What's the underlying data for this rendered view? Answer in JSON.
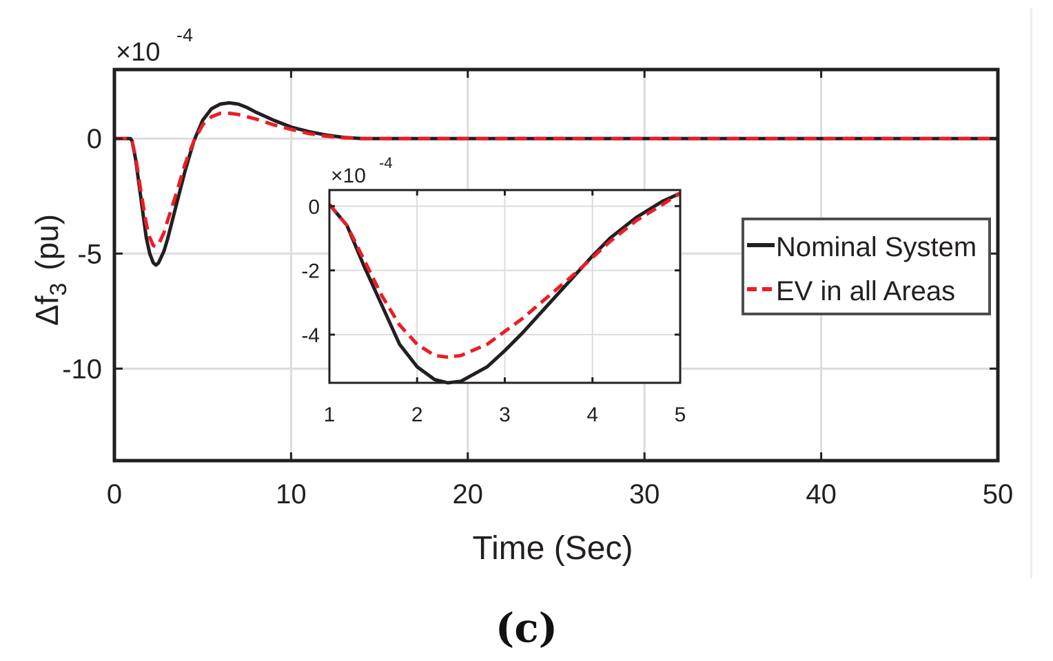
{
  "panel_label": "(c)",
  "chart_data": [
    {
      "id": "main",
      "type": "line",
      "title": "",
      "xlabel": "Time (Sec)",
      "ylabel_main": "Δf",
      "ylabel_sub": "3",
      "ylabel_unit": "(pu)",
      "y_scale_note": {
        "base": "×10",
        "exponent": "-4"
      },
      "xlim": [
        0,
        50
      ],
      "ylim": [
        -14,
        3
      ],
      "xticks": [
        0,
        10,
        20,
        30,
        40,
        50
      ],
      "xtick_labels": [
        "0",
        "10",
        "20",
        "30",
        "40",
        "50"
      ],
      "yticks": [
        0,
        -5,
        -10
      ],
      "ytick_labels": [
        "0",
        "-5",
        "-10"
      ],
      "grid": true,
      "legend": {
        "position": "center-right",
        "entries": [
          "Nominal System",
          "EV in all Areas"
        ]
      },
      "series": [
        {
          "name": "Nominal System",
          "color": "#231f20",
          "style": "solid",
          "x": [
            0,
            0.5,
            0.9,
            1.0,
            1.2,
            1.5,
            1.8,
            2.0,
            2.2,
            2.35,
            2.5,
            2.8,
            3.0,
            3.5,
            4.0,
            4.5,
            5.0,
            5.5,
            6.0,
            6.5,
            7.0,
            7.5,
            8.0,
            9.0,
            10.0,
            11.0,
            12.0,
            13.0,
            14.0,
            15.0,
            17.0,
            20.0,
            30.0,
            40.0,
            50.0
          ],
          "y": [
            0,
            0,
            0,
            -0.1,
            -0.9,
            -2.6,
            -4.3,
            -5.0,
            -5.4,
            -5.5,
            -5.4,
            -4.9,
            -4.4,
            -2.9,
            -1.4,
            -0.1,
            0.8,
            1.3,
            1.5,
            1.55,
            1.5,
            1.35,
            1.15,
            0.8,
            0.5,
            0.3,
            0.15,
            0.05,
            0.0,
            0.0,
            0.0,
            0.0,
            0.0,
            0.0,
            0.0
          ]
        },
        {
          "name": "EV in all Areas",
          "color": "#ed1c24",
          "style": "dashed",
          "x": [
            0,
            0.5,
            0.9,
            1.0,
            1.2,
            1.5,
            1.8,
            2.0,
            2.2,
            2.35,
            2.5,
            2.8,
            3.0,
            3.5,
            4.0,
            4.5,
            5.0,
            5.5,
            6.0,
            6.5,
            7.0,
            7.5,
            8.0,
            9.0,
            10.0,
            11.0,
            12.0,
            13.0,
            14.0,
            15.0,
            17.0,
            20.0,
            30.0,
            40.0,
            50.0
          ],
          "y": [
            0,
            0,
            0,
            -0.1,
            -0.8,
            -2.3,
            -3.7,
            -4.3,
            -4.65,
            -4.7,
            -4.6,
            -4.1,
            -3.6,
            -2.4,
            -1.1,
            -0.1,
            0.6,
            0.95,
            1.1,
            1.1,
            1.05,
            0.95,
            0.85,
            0.6,
            0.4,
            0.22,
            0.1,
            0.03,
            0.0,
            0.0,
            0.0,
            0.0,
            0.0,
            0.0,
            0.0
          ]
        }
      ]
    },
    {
      "id": "inset",
      "type": "line",
      "title": "",
      "xlabel": "",
      "ylabel": "",
      "y_scale_note": {
        "base": "×10",
        "exponent": "-4"
      },
      "xlim": [
        1,
        5
      ],
      "ylim": [
        -5.5,
        0.5
      ],
      "xticks": [
        1,
        2,
        3,
        4,
        5
      ],
      "xtick_labels": [
        "1",
        "2",
        "3",
        "4",
        "5"
      ],
      "yticks": [
        0,
        -2,
        -4
      ],
      "ytick_labels": [
        "0",
        "-2",
        "-4"
      ],
      "grid": true,
      "series": [
        {
          "name": "Nominal System",
          "color": "#231f20",
          "style": "solid",
          "x": [
            1.0,
            1.2,
            1.4,
            1.6,
            1.8,
            2.0,
            2.2,
            2.35,
            2.5,
            2.8,
            3.0,
            3.2,
            3.5,
            3.8,
            4.0,
            4.2,
            4.5,
            4.8,
            5.0
          ],
          "y": [
            0.05,
            -0.6,
            -1.9,
            -3.1,
            -4.3,
            -5.0,
            -5.4,
            -5.5,
            -5.45,
            -5.0,
            -4.5,
            -3.95,
            -3.05,
            -2.15,
            -1.55,
            -1.0,
            -0.35,
            0.15,
            0.4
          ]
        },
        {
          "name": "EV in all Areas",
          "color": "#ed1c24",
          "style": "dashed",
          "x": [
            1.0,
            1.2,
            1.4,
            1.6,
            1.8,
            2.0,
            2.2,
            2.35,
            2.5,
            2.8,
            3.0,
            3.2,
            3.5,
            3.8,
            4.0,
            4.2,
            4.5,
            4.8,
            5.0
          ],
          "y": [
            0.05,
            -0.6,
            -1.7,
            -2.8,
            -3.7,
            -4.3,
            -4.65,
            -4.7,
            -4.65,
            -4.3,
            -3.9,
            -3.5,
            -2.8,
            -2.1,
            -1.6,
            -1.1,
            -0.45,
            0.05,
            0.4
          ]
        }
      ]
    }
  ]
}
